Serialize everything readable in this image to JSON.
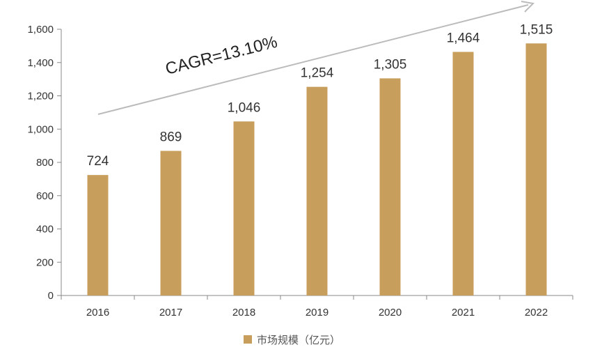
{
  "chart_data": {
    "type": "bar",
    "categories": [
      "2016",
      "2017",
      "2018",
      "2019",
      "2020",
      "2021",
      "2022"
    ],
    "series": [
      {
        "name": "市场规模（亿元）",
        "values": [
          724,
          869,
          1046,
          1254,
          1305,
          1464,
          1515
        ]
      }
    ],
    "data_labels": [
      "724",
      "869",
      "1,046",
      "1,254",
      "1,305",
      "1,464",
      "1,515"
    ],
    "y_ticks": [
      "0",
      "200",
      "400",
      "600",
      "800",
      "1,000",
      "1,200",
      "1,400",
      "1,600"
    ],
    "y_tick_values": [
      0,
      200,
      400,
      600,
      800,
      1000,
      1200,
      1400,
      1600
    ],
    "ylim": [
      0,
      1600
    ],
    "annotation": "CAGR=13.10%",
    "legend_position": "bottom",
    "grid": false,
    "bar_color": "#C89E5C",
    "axis_color": "#888888",
    "arrow_color": "#BBBBBB"
  }
}
